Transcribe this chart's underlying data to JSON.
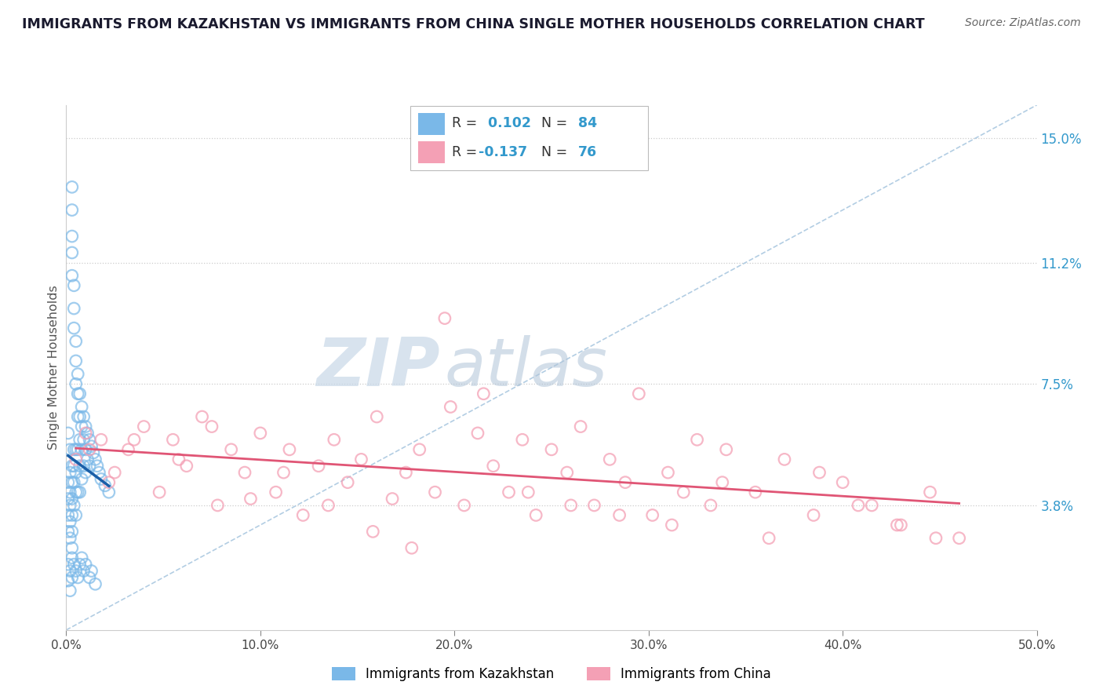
{
  "title": "IMMIGRANTS FROM KAZAKHSTAN VS IMMIGRANTS FROM CHINA SINGLE MOTHER HOUSEHOLDS CORRELATION CHART",
  "source": "Source: ZipAtlas.com",
  "ylabel": "Single Mother Households",
  "xlim": [
    0.0,
    0.5
  ],
  "ylim": [
    0.0,
    0.16
  ],
  "yticks": [
    0.038,
    0.075,
    0.112,
    0.15
  ],
  "ytick_labels": [
    "3.8%",
    "7.5%",
    "11.2%",
    "15.0%"
  ],
  "xticks": [
    0.0,
    0.1,
    0.2,
    0.3,
    0.4,
    0.5
  ],
  "xtick_labels": [
    "0.0%",
    "10.0%",
    "20.0%",
    "30.0%",
    "40.0%",
    "50.0%"
  ],
  "legend_blue_label": "Immigrants from Kazakhstan",
  "legend_pink_label": "Immigrants from China",
  "R_blue": 0.102,
  "N_blue": 84,
  "R_pink": -0.137,
  "N_pink": 76,
  "dot_color_blue": "#7ab8e8",
  "dot_color_pink": "#f4a0b5",
  "trend_color_blue": "#1a5fa8",
  "trend_color_pink": "#e05575",
  "diagonal_color": "#aac8e0",
  "watermark_zip": "ZIP",
  "watermark_atlas": "atlas",
  "background_color": "#ffffff",
  "blue_x": [
    0.001,
    0.001,
    0.001,
    0.001,
    0.002,
    0.002,
    0.002,
    0.002,
    0.002,
    0.003,
    0.003,
    0.003,
    0.003,
    0.003,
    0.003,
    0.003,
    0.003,
    0.003,
    0.003,
    0.003,
    0.004,
    0.004,
    0.004,
    0.004,
    0.004,
    0.004,
    0.004,
    0.005,
    0.005,
    0.005,
    0.005,
    0.005,
    0.005,
    0.005,
    0.006,
    0.006,
    0.006,
    0.006,
    0.006,
    0.007,
    0.007,
    0.007,
    0.007,
    0.007,
    0.008,
    0.008,
    0.008,
    0.008,
    0.009,
    0.009,
    0.009,
    0.01,
    0.01,
    0.01,
    0.011,
    0.011,
    0.012,
    0.012,
    0.013,
    0.014,
    0.015,
    0.016,
    0.017,
    0.018,
    0.02,
    0.022,
    0.001,
    0.001,
    0.002,
    0.002,
    0.003,
    0.003,
    0.004,
    0.005,
    0.006,
    0.007,
    0.008,
    0.009,
    0.01,
    0.012,
    0.013,
    0.015,
    0.001,
    0.002
  ],
  "blue_y": [
    0.045,
    0.04,
    0.035,
    0.03,
    0.048,
    0.042,
    0.038,
    0.033,
    0.028,
    0.135,
    0.128,
    0.12,
    0.115,
    0.108,
    0.05,
    0.045,
    0.04,
    0.035,
    0.03,
    0.025,
    0.105,
    0.098,
    0.092,
    0.055,
    0.05,
    0.045,
    0.038,
    0.088,
    0.082,
    0.075,
    0.055,
    0.048,
    0.042,
    0.035,
    0.078,
    0.072,
    0.065,
    0.055,
    0.042,
    0.072,
    0.065,
    0.058,
    0.05,
    0.042,
    0.068,
    0.062,
    0.055,
    0.046,
    0.065,
    0.058,
    0.05,
    0.062,
    0.055,
    0.048,
    0.06,
    0.052,
    0.058,
    0.05,
    0.056,
    0.054,
    0.052,
    0.05,
    0.048,
    0.046,
    0.044,
    0.042,
    0.02,
    0.015,
    0.018,
    0.012,
    0.022,
    0.016,
    0.02,
    0.018,
    0.016,
    0.02,
    0.022,
    0.018,
    0.02,
    0.016,
    0.018,
    0.014,
    0.06,
    0.055
  ],
  "pink_x": [
    0.005,
    0.01,
    0.018,
    0.025,
    0.032,
    0.04,
    0.048,
    0.055,
    0.062,
    0.07,
    0.078,
    0.085,
    0.092,
    0.1,
    0.108,
    0.115,
    0.122,
    0.13,
    0.138,
    0.145,
    0.152,
    0.16,
    0.168,
    0.175,
    0.182,
    0.19,
    0.198,
    0.205,
    0.212,
    0.22,
    0.228,
    0.235,
    0.242,
    0.25,
    0.258,
    0.265,
    0.272,
    0.28,
    0.288,
    0.295,
    0.302,
    0.31,
    0.318,
    0.325,
    0.332,
    0.34,
    0.355,
    0.37,
    0.385,
    0.4,
    0.415,
    0.43,
    0.445,
    0.46,
    0.012,
    0.022,
    0.035,
    0.058,
    0.075,
    0.095,
    0.112,
    0.135,
    0.158,
    0.178,
    0.195,
    0.215,
    0.238,
    0.26,
    0.285,
    0.312,
    0.338,
    0.362,
    0.388,
    0.408,
    0.428,
    0.448
  ],
  "pink_y": [
    0.052,
    0.06,
    0.058,
    0.048,
    0.055,
    0.062,
    0.042,
    0.058,
    0.05,
    0.065,
    0.038,
    0.055,
    0.048,
    0.06,
    0.042,
    0.055,
    0.035,
    0.05,
    0.058,
    0.045,
    0.052,
    0.065,
    0.04,
    0.048,
    0.055,
    0.042,
    0.068,
    0.038,
    0.06,
    0.05,
    0.042,
    0.058,
    0.035,
    0.055,
    0.048,
    0.062,
    0.038,
    0.052,
    0.045,
    0.072,
    0.035,
    0.048,
    0.042,
    0.058,
    0.038,
    0.055,
    0.042,
    0.052,
    0.035,
    0.045,
    0.038,
    0.032,
    0.042,
    0.028,
    0.055,
    0.045,
    0.058,
    0.052,
    0.062,
    0.04,
    0.048,
    0.038,
    0.03,
    0.025,
    0.095,
    0.072,
    0.042,
    0.038,
    0.035,
    0.032,
    0.045,
    0.028,
    0.048,
    0.038,
    0.032,
    0.028
  ]
}
